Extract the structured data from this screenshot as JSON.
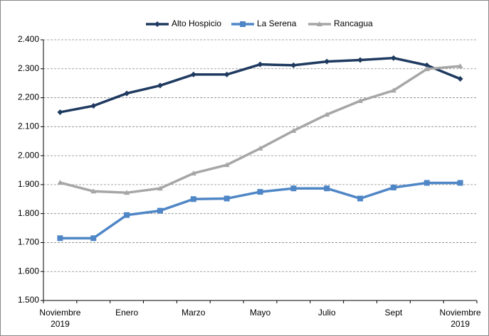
{
  "chart_data": {
    "type": "line",
    "categories": [
      "Noviembre 2019",
      null,
      "Enero",
      null,
      "Marzo",
      null,
      "Mayo",
      null,
      "Julio",
      null,
      "Sept",
      null,
      "Noviembre 2019"
    ],
    "series": [
      {
        "name": "Alto Hospicio",
        "color": "#1f3a60",
        "marker": "diamond",
        "values": [
          2150,
          2172,
          2215,
          2242,
          2280,
          2280,
          2315,
          2312,
          2325,
          2330,
          2337,
          2312,
          2265
        ]
      },
      {
        "name": "La Serena",
        "color": "#4f86c6",
        "marker": "square",
        "values": [
          1715,
          1715,
          1795,
          1810,
          1850,
          1852,
          1875,
          1887,
          1887,
          1852,
          1890,
          1906,
          1906
        ]
      },
      {
        "name": "Rancagua",
        "color": "#a6a6a6",
        "marker": "triangle",
        "values": [
          1907,
          1877,
          1872,
          1887,
          1939,
          1968,
          2025,
          2086,
          2142,
          2189,
          2225,
          2299,
          2309
        ]
      }
    ],
    "ylim": [
      1500,
      2400
    ],
    "yticks": [
      {
        "value": 1500,
        "label": "1.500"
      },
      {
        "value": 1600,
        "label": "1.600"
      },
      {
        "value": 1700,
        "label": "1.700"
      },
      {
        "value": 1800,
        "label": "1.800"
      },
      {
        "value": 1900,
        "label": "1.900"
      },
      {
        "value": 2000,
        "label": "2.000"
      },
      {
        "value": 2100,
        "label": "2.100"
      },
      {
        "value": 2200,
        "label": "2.200"
      },
      {
        "value": 2300,
        "label": "2.300"
      },
      {
        "value": 2400,
        "label": "2.400"
      }
    ],
    "grid": true,
    "legend": "top"
  }
}
